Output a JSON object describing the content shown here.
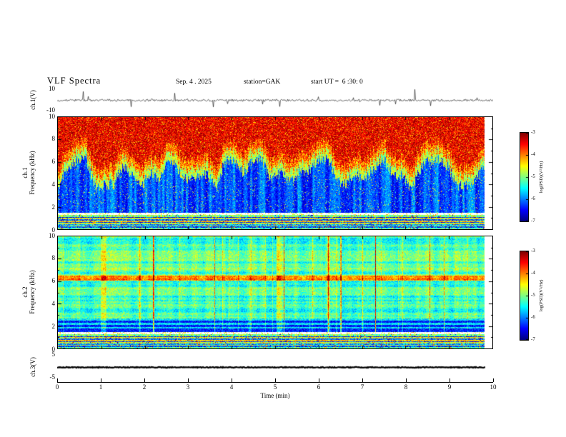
{
  "header": {
    "title": "VLF Spectra",
    "date": "Sep. 4 . 2025",
    "station": "station=GAK",
    "start_ut": "start UT =  6 :30: 0"
  },
  "panels": {
    "ch1_wave": {
      "ylabel": "ch.1(V)",
      "yticks": [
        "10",
        "-10"
      ]
    },
    "ch1_spec": {
      "ylabel_line1": "ch.1",
      "ylabel_line2": "Frequency (kHz)",
      "yticks": [
        "10",
        "8",
        "6",
        "4",
        "2",
        "0"
      ]
    },
    "ch2_spec": {
      "ylabel_line1": "ch.2",
      "ylabel_line2": "Frequency (kHz)",
      "yticks": [
        "10",
        "8",
        "6",
        "4",
        "2",
        "0"
      ]
    },
    "ch3_wave": {
      "ylabel": "ch.3(V)",
      "yticks": [
        "5",
        "-5"
      ]
    }
  },
  "xaxis": {
    "label": "Time (min)",
    "ticks": [
      "0",
      "1",
      "2",
      "3",
      "4",
      "5",
      "6",
      "7",
      "8",
      "9",
      "10"
    ]
  },
  "colorbar": {
    "label": "log(PSD)(V²/Hz)",
    "ticks": [
      "-3",
      "-4",
      "-5",
      "-6",
      "-7"
    ]
  },
  "chart_data": [
    {
      "name": "ch1_waveform",
      "type": "line",
      "ylabel": "ch.1(V)",
      "ylim": [
        -10,
        10
      ],
      "yticks": [
        10,
        -10
      ],
      "x_range_min": [
        0,
        10
      ],
      "description": "Noisy voltage trace centered on 0 V with dense impulsive spikes reaching toward ±10 V across the full 10-minute record"
    },
    {
      "name": "ch1_spectrogram",
      "type": "heatmap",
      "ylabel": "ch.1 Frequency (kHz)",
      "ylim": [
        0,
        10
      ],
      "yticks": [
        0,
        2,
        4,
        6,
        8,
        10
      ],
      "x_range_min": [
        0,
        10
      ],
      "colormap": "jet",
      "value_scale": {
        "label": "log(PSD)(V²/Hz)",
        "range": [
          -7,
          -3
        ],
        "ticks": [
          -3,
          -4,
          -5,
          -6,
          -7
        ]
      },
      "features": {
        "high_band": "intense red broadband power (PSD near -3) above a jagged boundary varying between about 4.5 and 7.5 kHz",
        "transition": "yellow-green transition band roughly 1 kHz thick below the red region",
        "low_band": "dark blue low power (PSD near -6.5 to -7) from ~1.5 to 4.5 kHz with vertical striations and cyan speckle",
        "bottom_strip": "banded mixed-intensity strip below ~1.3 kHz with alternating dark/green/yellow horizontal bands",
        "gap": "thin light gap near 1.3-1.5 kHz"
      }
    },
    {
      "name": "ch2_spectrogram",
      "type": "heatmap",
      "ylabel": "ch.2 Frequency (kHz)",
      "ylim": [
        0,
        10
      ],
      "yticks": [
        0,
        2,
        4,
        6,
        8,
        10
      ],
      "x_range_min": [
        0,
        10
      ],
      "colormap": "jet",
      "value_scale": {
        "label": "log(PSD)(V²/Hz)",
        "range": [
          -7,
          -3
        ],
        "ticks": [
          -3,
          -4,
          -5,
          -6,
          -7
        ]
      },
      "features": {
        "background": "cyan-green mid-level power (PSD near -5) over most of the band with fine horizontal structure",
        "yellow_band": "persistent yellow horizontal band near 6.2-6.5 kHz",
        "streaks": "sporadic vertical yellow-orange streaks (strongest near ~2.2, 3.6, 5.2, 6.5 and 7.3 min)",
        "dark_bands": "dark blue horizontal bands between about 1.5 and 2.5 kHz",
        "bottom_strip": "banded mixed-intensity strip below ~1.3 kHz",
        "gap": "thin light gap near 1.3-1.5 kHz"
      }
    },
    {
      "name": "ch3_waveform",
      "type": "line",
      "ylabel": "ch.3(V)",
      "ylim": [
        -5,
        5
      ],
      "yticks": [
        5,
        -5
      ],
      "x_range_min": [
        0,
        10
      ],
      "description": "Flat thick trace at 0 V for the entire record, data ending near 9.8 min"
    }
  ]
}
